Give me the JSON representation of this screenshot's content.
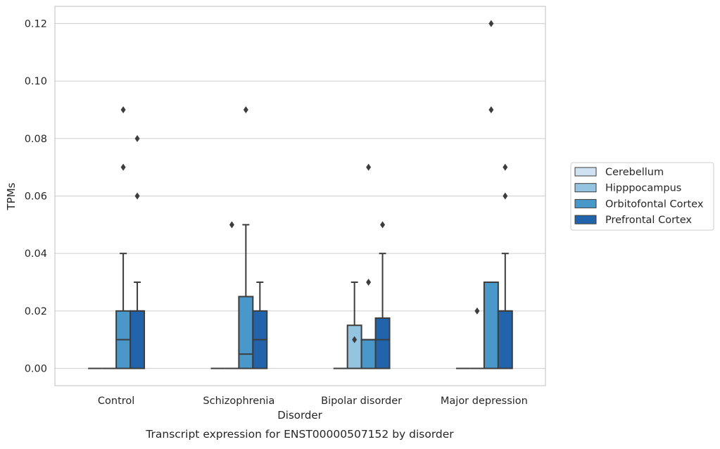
{
  "chart_data": {
    "type": "box",
    "title": "Transcript expression for ENST00000507152 by disorder",
    "xlabel": "Disorder",
    "ylabel": "TPMs",
    "ylim": [
      -0.006,
      0.126
    ],
    "yticks": [
      "0.00",
      "0.02",
      "0.04",
      "0.06",
      "0.08",
      "0.10",
      "0.12"
    ],
    "grid": true,
    "legend_position": "right",
    "categories": [
      "Control",
      "Schizophrenia",
      "Bipolar disorder",
      "Major depression"
    ],
    "series": [
      {
        "name": "Cerebellum",
        "color": "#d0e1f2",
        "boxes": [
          {
            "q1": 0,
            "median": 0,
            "q3": 0,
            "whisker_low": 0,
            "whisker_high": 0,
            "outliers": []
          },
          {
            "q1": 0,
            "median": 0,
            "q3": 0,
            "whisker_low": 0,
            "whisker_high": 0,
            "outliers": []
          },
          {
            "q1": 0,
            "median": 0,
            "q3": 0,
            "whisker_low": 0,
            "whisker_high": 0,
            "outliers": []
          },
          {
            "q1": 0,
            "median": 0,
            "q3": 0,
            "whisker_low": 0,
            "whisker_high": 0,
            "outliers": []
          }
        ]
      },
      {
        "name": "Hipppocampus",
        "color": "#94c4df",
        "boxes": [
          {
            "q1": 0,
            "median": 0,
            "q3": 0,
            "whisker_low": 0,
            "whisker_high": 0,
            "outliers": []
          },
          {
            "q1": 0,
            "median": 0,
            "q3": 0,
            "whisker_low": 0,
            "whisker_high": 0,
            "outliers": [
              0.05
            ]
          },
          {
            "q1": 0,
            "median": 0,
            "q3": 0.015,
            "whisker_low": 0,
            "whisker_high": 0.03,
            "outliers": [
              0.01
            ]
          },
          {
            "q1": 0,
            "median": 0,
            "q3": 0,
            "whisker_low": 0,
            "whisker_high": 0,
            "outliers": [
              0.02
            ]
          }
        ]
      },
      {
        "name": "Orbitofontal Cortex",
        "color": "#4a98c9",
        "boxes": [
          {
            "q1": 0,
            "median": 0.01,
            "q3": 0.02,
            "whisker_low": 0,
            "whisker_high": 0.04,
            "outliers": [
              0.07,
              0.09
            ]
          },
          {
            "q1": 0,
            "median": 0.005,
            "q3": 0.025,
            "whisker_low": 0,
            "whisker_high": 0.05,
            "outliers": [
              0.09
            ]
          },
          {
            "q1": 0,
            "median": 0.01,
            "q3": 0.01,
            "whisker_low": 0,
            "whisker_high": 0.01,
            "outliers": [
              0.03,
              0.07
            ]
          },
          {
            "q1": 0,
            "median": 0.03,
            "q3": 0.03,
            "whisker_low": 0,
            "whisker_high": 0.03,
            "outliers": [
              0.09,
              0.12
            ]
          }
        ]
      },
      {
        "name": "Prefrontal Cortex",
        "color": "#2164ab",
        "boxes": [
          {
            "q1": 0,
            "median": 0.02,
            "q3": 0.02,
            "whisker_low": 0,
            "whisker_high": 0.03,
            "outliers": [
              0.06,
              0.08
            ]
          },
          {
            "q1": 0,
            "median": 0.01,
            "q3": 0.02,
            "whisker_low": 0,
            "whisker_high": 0.03,
            "outliers": []
          },
          {
            "q1": 0,
            "median": 0.01,
            "q3": 0.0175,
            "whisker_low": 0,
            "whisker_high": 0.04,
            "outliers": [
              0.05
            ]
          },
          {
            "q1": 0,
            "median": 0.02,
            "q3": 0.02,
            "whisker_low": 0,
            "whisker_high": 0.04,
            "outliers": [
              0.06,
              0.07
            ]
          }
        ]
      }
    ]
  }
}
